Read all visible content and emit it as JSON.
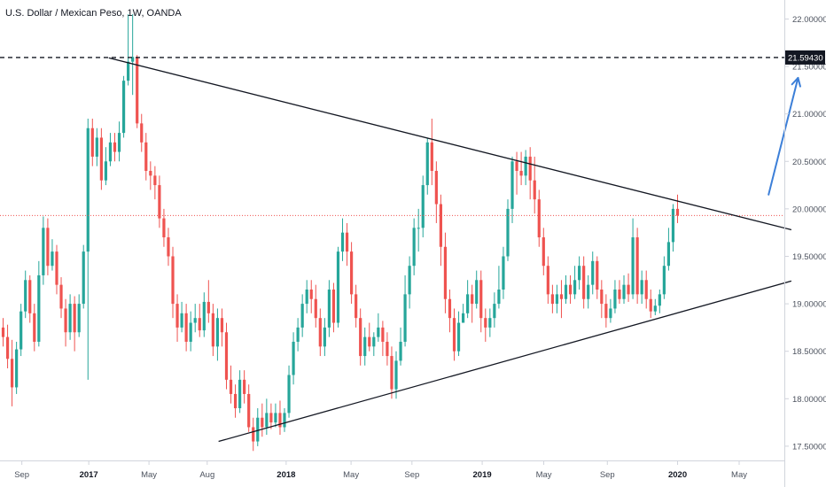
{
  "chart_data": {
    "type": "candlestick",
    "title": "U.S. Dollar / Mexican Peso, 1W, OANDA",
    "timeframe": "1W",
    "colors": {
      "up": "#26a69a",
      "down": "#ef5350",
      "trendline": "#131722",
      "arrow": "#3c7fd8",
      "current_price_line": "#ef5350",
      "marked_level_line": "#131722",
      "marked_level_label_bg": "#131722",
      "axis_border": "#d1d4dc"
    },
    "x_axis": {
      "ticks": [
        {
          "label": "Sep",
          "bold": false
        },
        {
          "label": "2017",
          "bold": true
        },
        {
          "label": "May",
          "bold": false
        },
        {
          "label": "Aug",
          "bold": false
        },
        {
          "label": "2018",
          "bold": true
        },
        {
          "label": "May",
          "bold": false
        },
        {
          "label": "Sep",
          "bold": false
        },
        {
          "label": "2019",
          "bold": true
        },
        {
          "label": "May",
          "bold": false
        },
        {
          "label": "Sep",
          "bold": false
        },
        {
          "label": "2020",
          "bold": true
        },
        {
          "label": "May",
          "bold": false
        }
      ]
    },
    "y_axis": {
      "side": "right",
      "ylim": [
        17.35,
        22.2
      ],
      "ticks": [
        "17.50000",
        "18.00000",
        "18.50000",
        "19.00000",
        "19.50000",
        "20.00000",
        "20.50000",
        "21.00000",
        "21.50000",
        "22.00000"
      ]
    },
    "marked_level": {
      "value": 21.5943,
      "label": "21.59430",
      "style": "dashed"
    },
    "current_price": {
      "value": 19.93,
      "style": "dotted"
    },
    "trendlines": [
      {
        "name": "descending resistance",
        "from": [
          1.6,
          21.59
        ],
        "to": [
          11.8,
          19.78
        ]
      },
      {
        "name": "ascending support",
        "from": [
          3.24,
          17.55
        ],
        "to": [
          11.8,
          19.24
        ]
      }
    ],
    "arrow": {
      "from": [
        11.46,
        20.15
      ],
      "to": [
        11.9,
        21.38
      ]
    },
    "candles": [
      [
        18.75,
        18.65,
        18.85,
        18.55
      ],
      [
        18.65,
        18.42,
        18.78,
        18.32
      ],
      [
        18.42,
        18.12,
        18.62,
        17.92
      ],
      [
        18.12,
        18.52,
        18.6,
        18.05
      ],
      [
        18.52,
        18.92,
        19.0,
        18.45
      ],
      [
        18.92,
        19.25,
        19.35,
        18.85
      ],
      [
        19.25,
        18.9,
        19.3,
        18.8
      ],
      [
        18.9,
        18.6,
        19.0,
        18.5
      ],
      [
        18.6,
        19.3,
        19.45,
        18.55
      ],
      [
        19.3,
        19.8,
        19.92,
        19.2
      ],
      [
        19.8,
        19.4,
        19.9,
        19.3
      ],
      [
        19.4,
        19.55,
        19.68,
        19.35
      ],
      [
        19.55,
        19.2,
        19.62,
        19.1
      ],
      [
        19.2,
        18.95,
        19.28,
        18.85
      ],
      [
        18.95,
        18.7,
        19.05,
        18.55
      ],
      [
        18.7,
        19.0,
        19.1,
        18.62
      ],
      [
        19.0,
        18.7,
        19.08,
        18.5
      ],
      [
        18.7,
        19.0,
        19.1,
        18.65
      ],
      [
        19.0,
        19.55,
        19.62,
        18.95
      ],
      [
        19.55,
        20.85,
        20.95,
        18.2
      ],
      [
        20.85,
        20.55,
        20.95,
        20.45
      ],
      [
        20.55,
        20.75,
        20.85,
        20.45
      ],
      [
        20.75,
        20.3,
        20.85,
        20.2
      ],
      [
        20.3,
        20.5,
        20.65,
        20.25
      ],
      [
        20.5,
        20.7,
        20.8,
        20.45
      ],
      [
        20.7,
        20.6,
        20.8,
        20.5
      ],
      [
        20.6,
        20.8,
        20.92,
        20.5
      ],
      [
        20.8,
        21.35,
        21.4,
        20.75
      ],
      [
        21.35,
        21.55,
        22.05,
        21.3
      ],
      [
        21.55,
        21.6,
        22.05,
        21.2
      ],
      [
        21.6,
        20.9,
        21.62,
        20.85
      ],
      [
        20.9,
        20.7,
        21.0,
        20.6
      ],
      [
        20.7,
        20.4,
        20.8,
        20.3
      ],
      [
        20.4,
        20.35,
        20.5,
        20.2
      ],
      [
        20.35,
        20.25,
        20.45,
        20.1
      ],
      [
        20.25,
        19.9,
        20.35,
        19.8
      ],
      [
        19.9,
        19.7,
        20.0,
        19.6
      ],
      [
        19.7,
        19.5,
        19.8,
        19.4
      ],
      [
        19.5,
        19.0,
        19.6,
        18.85
      ],
      [
        19.0,
        18.75,
        19.1,
        18.6
      ],
      [
        18.75,
        18.9,
        19.02,
        18.7
      ],
      [
        18.9,
        18.6,
        19.0,
        18.5
      ],
      [
        18.6,
        18.8,
        18.92,
        18.5
      ],
      [
        18.8,
        18.85,
        19.0,
        18.7
      ],
      [
        18.85,
        18.72,
        19.0,
        18.65
      ],
      [
        18.72,
        19.02,
        19.12,
        18.65
      ],
      [
        19.02,
        18.9,
        19.25,
        18.8
      ],
      [
        18.9,
        18.55,
        19.0,
        18.45
      ],
      [
        18.55,
        18.85,
        18.95,
        18.4
      ],
      [
        18.85,
        18.7,
        18.95,
        18.55
      ],
      [
        18.7,
        18.2,
        18.8,
        18.1
      ],
      [
        18.2,
        18.05,
        18.35,
        17.95
      ],
      [
        18.05,
        17.9,
        18.15,
        17.8
      ],
      [
        17.9,
        18.2,
        18.3,
        17.85
      ],
      [
        18.2,
        18.05,
        18.3,
        17.95
      ],
      [
        18.05,
        17.7,
        18.15,
        17.65
      ],
      [
        17.7,
        17.55,
        17.8,
        17.45
      ],
      [
        17.55,
        17.8,
        17.9,
        17.5
      ],
      [
        17.8,
        17.7,
        17.95,
        17.6
      ],
      [
        17.7,
        17.85,
        18.0,
        17.62
      ],
      [
        17.85,
        17.75,
        17.95,
        17.68
      ],
      [
        17.75,
        17.85,
        17.95,
        17.7
      ],
      [
        17.85,
        17.7,
        17.98,
        17.62
      ],
      [
        17.7,
        17.85,
        17.9,
        17.65
      ],
      [
        17.85,
        18.25,
        18.35,
        17.8
      ],
      [
        18.25,
        18.6,
        18.7,
        18.15
      ],
      [
        18.6,
        18.75,
        18.85,
        18.5
      ],
      [
        18.75,
        19.0,
        19.1,
        18.65
      ],
      [
        19.0,
        19.15,
        19.25,
        18.9
      ],
      [
        19.15,
        19.05,
        19.25,
        18.9
      ],
      [
        19.05,
        18.85,
        19.2,
        18.75
      ],
      [
        18.85,
        18.55,
        18.95,
        18.45
      ],
      [
        18.55,
        18.75,
        18.85,
        18.45
      ],
      [
        18.75,
        19.15,
        19.25,
        18.65
      ],
      [
        19.15,
        18.8,
        19.22,
        18.7
      ],
      [
        18.8,
        19.55,
        19.6,
        18.75
      ],
      [
        19.55,
        19.75,
        19.9,
        19.45
      ],
      [
        19.75,
        19.55,
        19.85,
        19.4
      ],
      [
        19.55,
        19.1,
        19.65,
        19.0
      ],
      [
        19.1,
        18.85,
        19.2,
        18.75
      ],
      [
        18.85,
        18.45,
        18.95,
        18.35
      ],
      [
        18.45,
        18.65,
        18.75,
        18.35
      ],
      [
        18.65,
        18.55,
        18.8,
        18.5
      ],
      [
        18.55,
        18.65,
        18.7,
        18.45
      ],
      [
        18.65,
        18.75,
        18.9,
        18.6
      ],
      [
        18.75,
        18.6,
        18.82,
        18.45
      ],
      [
        18.6,
        18.45,
        18.7,
        18.35
      ],
      [
        18.45,
        18.1,
        18.55,
        18.0
      ],
      [
        18.1,
        18.4,
        18.5,
        18.0
      ],
      [
        18.4,
        18.6,
        18.75,
        18.35
      ],
      [
        18.6,
        19.1,
        19.3,
        18.55
      ],
      [
        19.1,
        19.4,
        19.5,
        18.95
      ],
      [
        19.4,
        19.8,
        19.9,
        19.3
      ],
      [
        19.8,
        19.8,
        20.0,
        19.55
      ],
      [
        19.8,
        20.25,
        20.35,
        19.7
      ],
      [
        20.25,
        20.7,
        20.75,
        20.15
      ],
      [
        20.7,
        20.4,
        20.95,
        20.25
      ],
      [
        20.4,
        20.05,
        20.5,
        19.85
      ],
      [
        20.05,
        19.6,
        20.15,
        19.4
      ],
      [
        19.6,
        19.05,
        19.75,
        18.9
      ],
      [
        19.05,
        18.85,
        19.15,
        18.7
      ],
      [
        18.85,
        18.5,
        18.95,
        18.4
      ],
      [
        18.5,
        18.8,
        18.92,
        18.45
      ],
      [
        18.8,
        18.9,
        19.0,
        18.8
      ],
      [
        18.9,
        19.1,
        19.25,
        18.85
      ],
      [
        19.1,
        19.0,
        19.2,
        18.8
      ],
      [
        19.0,
        19.25,
        19.35,
        18.95
      ],
      [
        19.25,
        18.85,
        19.35,
        18.7
      ],
      [
        18.85,
        18.75,
        18.95,
        18.6
      ],
      [
        18.75,
        18.85,
        18.95,
        18.65
      ],
      [
        18.85,
        19.0,
        19.12,
        18.75
      ],
      [
        19.0,
        19.15,
        19.4,
        18.95
      ],
      [
        19.15,
        19.5,
        19.6,
        19.05
      ],
      [
        19.5,
        20.0,
        20.1,
        19.45
      ],
      [
        20.0,
        20.5,
        20.55,
        19.85
      ],
      [
        20.5,
        20.4,
        20.6,
        20.15
      ],
      [
        20.4,
        20.35,
        20.6,
        20.25
      ],
      [
        20.35,
        20.55,
        20.62,
        20.25
      ],
      [
        20.55,
        20.3,
        20.65,
        20.1
      ],
      [
        20.3,
        20.1,
        20.55,
        19.95
      ],
      [
        20.1,
        19.7,
        20.2,
        19.6
      ],
      [
        19.7,
        19.4,
        19.8,
        19.3
      ],
      [
        19.4,
        19.1,
        19.5,
        19.0
      ],
      [
        19.1,
        19.0,
        19.2,
        18.9
      ],
      [
        19.0,
        19.1,
        19.2,
        18.9
      ],
      [
        19.1,
        19.05,
        19.25,
        18.85
      ],
      [
        19.05,
        19.2,
        19.3,
        19.0
      ],
      [
        19.2,
        19.1,
        19.3,
        19.0
      ],
      [
        19.1,
        19.25,
        19.4,
        19.05
      ],
      [
        19.25,
        19.4,
        19.5,
        19.15
      ],
      [
        19.4,
        19.05,
        19.5,
        18.95
      ],
      [
        19.05,
        19.2,
        19.3,
        18.95
      ],
      [
        19.2,
        19.45,
        19.55,
        19.1
      ],
      [
        19.45,
        19.15,
        19.5,
        19.05
      ],
      [
        19.15,
        19.0,
        19.25,
        18.85
      ],
      [
        19.0,
        18.85,
        19.1,
        18.75
      ],
      [
        18.85,
        18.95,
        19.05,
        18.8
      ],
      [
        18.95,
        19.15,
        19.25,
        18.9
      ],
      [
        19.15,
        19.05,
        19.25,
        19.0
      ],
      [
        19.05,
        19.2,
        19.3,
        19.0
      ],
      [
        19.2,
        19.1,
        19.32,
        19.02
      ],
      [
        19.1,
        19.7,
        19.9,
        19.05
      ],
      [
        19.7,
        19.1,
        19.8,
        19.0
      ],
      [
        19.1,
        19.25,
        19.35,
        19.0
      ],
      [
        19.25,
        19.05,
        19.35,
        18.95
      ],
      [
        19.05,
        18.92,
        19.15,
        18.85
      ],
      [
        18.92,
        18.98,
        19.05,
        18.88
      ],
      [
        18.98,
        19.1,
        19.15,
        18.9
      ],
      [
        19.1,
        19.4,
        19.5,
        19.05
      ],
      [
        19.4,
        19.65,
        19.8,
        19.35
      ],
      [
        19.65,
        20.0,
        20.05,
        19.55
      ],
      [
        20.0,
        19.93,
        20.15,
        19.85
      ]
    ]
  }
}
